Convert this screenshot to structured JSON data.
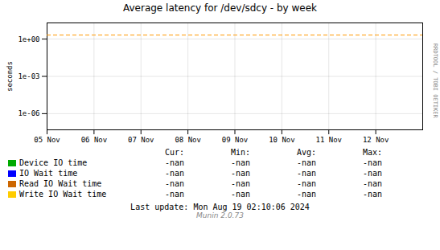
{
  "chart_data": {
    "type": "line",
    "title": "Average latency for /dev/sdcy - by week",
    "ylabel": "seconds",
    "log": "y",
    "grid": true,
    "xlim": [
      0,
      8
    ],
    "xticks": [
      {
        "value": 0,
        "label": "05 Nov"
      },
      {
        "value": 1,
        "label": "06 Nov"
      },
      {
        "value": 2,
        "label": "07 Nov"
      },
      {
        "value": 3,
        "label": "08 Nov"
      },
      {
        "value": 4,
        "label": "09 Nov"
      },
      {
        "value": 5,
        "label": "10 Nov"
      },
      {
        "value": 6,
        "label": "11 Nov"
      },
      {
        "value": 7,
        "label": "12 Nov"
      }
    ],
    "ylim": [
      5e-08,
      20.0
    ],
    "yticks": [
      {
        "value": 1e-06,
        "label": "1e-06"
      },
      {
        "value": 0.001,
        "label": "1e-03"
      },
      {
        "value": 1,
        "label": "1e+00"
      }
    ],
    "hline": {
      "y": 2.1,
      "color": "#ff9900",
      "line_style": "dashed"
    },
    "series": [
      {
        "name": "Device IO time",
        "color": "#00aa00"
      },
      {
        "name": "IO Wait time",
        "color": "#0000ff"
      },
      {
        "name": "Read IO Wait time",
        "color": "#cc6600"
      },
      {
        "name": "Write IO Wait time",
        "color": "#ffcc00"
      }
    ],
    "table_headers": [
      "Cur:",
      "Min:",
      "Avg:",
      "Max:"
    ],
    "table_rows": [
      [
        "-nan",
        "-nan",
        "-nan",
        "-nan"
      ],
      [
        "-nan",
        "-nan",
        "-nan",
        "-nan"
      ],
      [
        "-nan",
        "-nan",
        "-nan",
        "-nan"
      ],
      [
        "-nan",
        "-nan",
        "-nan",
        "-nan"
      ]
    ],
    "side_text": "RRDTOOL / TOBI OETIKER",
    "footer": "Last update: Mon Aug 19 02:10:06 2024",
    "version_text": "Munin 2.0.73"
  }
}
